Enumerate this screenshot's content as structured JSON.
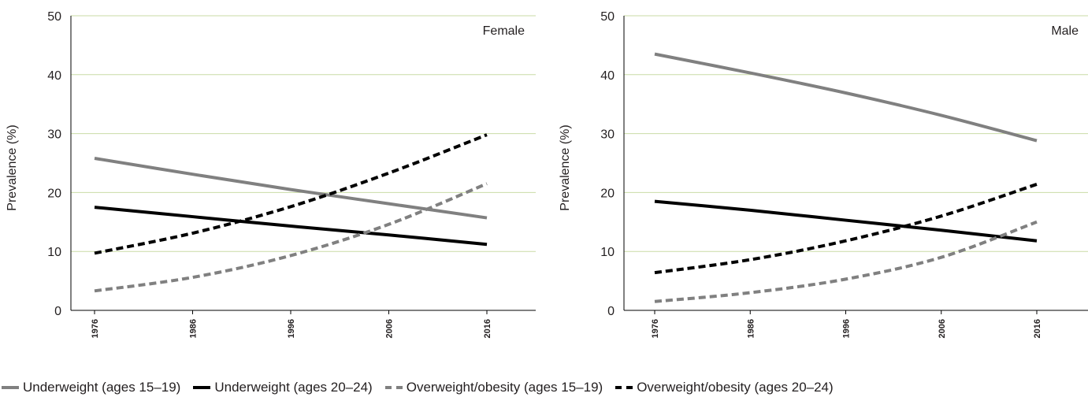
{
  "chart_data": [
    {
      "type": "line",
      "title": "Female",
      "ylabel": "Prevalence (%)",
      "xlabel": "",
      "ylim": [
        0,
        50
      ],
      "yticks": [
        0,
        10,
        20,
        30,
        40,
        50
      ],
      "xticks": [
        1976,
        1986,
        1996,
        2006,
        2016
      ],
      "xlim": [
        1976,
        2016
      ],
      "grid": "horizontal",
      "series": [
        {
          "name": "Underweight (ages 15–19)",
          "color": "#808080",
          "dash": "solid",
          "x": [
            1976,
            1986,
            1996,
            2006,
            2016
          ],
          "values": [
            25.8,
            23.1,
            20.5,
            18.1,
            15.7
          ]
        },
        {
          "name": "Underweight (ages 20–24)",
          "color": "#000000",
          "dash": "solid",
          "x": [
            1976,
            1986,
            1996,
            2006,
            2016
          ],
          "values": [
            17.5,
            15.9,
            14.3,
            12.8,
            11.2
          ]
        },
        {
          "name": "Overweight/obesity (ages 15–19)",
          "color": "#808080",
          "dash": "dashed",
          "x": [
            1976,
            1986,
            1996,
            2006,
            2016
          ],
          "values": [
            3.3,
            5.6,
            9.3,
            14.6,
            21.5
          ]
        },
        {
          "name": "Overweight/obesity (ages 20–24)",
          "color": "#000000",
          "dash": "dashed",
          "x": [
            1976,
            1986,
            1996,
            2006,
            2016
          ],
          "values": [
            9.7,
            13.1,
            17.6,
            23.3,
            29.8
          ]
        }
      ]
    },
    {
      "type": "line",
      "title": "Male",
      "ylabel": "Prevalence (%)",
      "xlabel": "",
      "ylim": [
        0,
        50
      ],
      "yticks": [
        0,
        10,
        20,
        30,
        40,
        50
      ],
      "xticks": [
        1976,
        1986,
        1996,
        2006,
        2016
      ],
      "xlim": [
        1976,
        2016
      ],
      "grid": "horizontal",
      "series": [
        {
          "name": "Underweight (ages 15–19)",
          "color": "#808080",
          "dash": "solid",
          "x": [
            1976,
            1986,
            1996,
            2006,
            2016
          ],
          "values": [
            43.5,
            40.3,
            36.9,
            33.1,
            28.8
          ]
        },
        {
          "name": "Underweight (ages 20–24)",
          "color": "#000000",
          "dash": "solid",
          "x": [
            1976,
            1986,
            1996,
            2006,
            2016
          ],
          "values": [
            18.5,
            17.0,
            15.3,
            13.6,
            11.8
          ]
        },
        {
          "name": "Overweight/obesity (ages 15–19)",
          "color": "#808080",
          "dash": "dashed",
          "x": [
            1976,
            1986,
            1996,
            2006,
            2016
          ],
          "values": [
            1.5,
            3.0,
            5.3,
            9.0,
            15.0
          ]
        },
        {
          "name": "Overweight/obesity (ages 20–24)",
          "color": "#000000",
          "dash": "dashed",
          "x": [
            1976,
            1986,
            1996,
            2006,
            2016
          ],
          "values": [
            6.4,
            8.6,
            11.8,
            16.0,
            21.4
          ]
        }
      ]
    }
  ],
  "legend": [
    {
      "label": "Underweight (ages 15–19)",
      "color": "#808080",
      "dash": "solid"
    },
    {
      "label": "Underweight (ages 20–24)",
      "color": "#000000",
      "dash": "solid"
    },
    {
      "label": "Overweight/obesity (ages 15–19)",
      "color": "#808080",
      "dash": "dashed"
    },
    {
      "label": "Overweight/obesity (ages 20–24)",
      "color": "#000000",
      "dash": "dashed"
    }
  ],
  "colors": {
    "grid": "#c9dba6",
    "axis": "#000000"
  }
}
